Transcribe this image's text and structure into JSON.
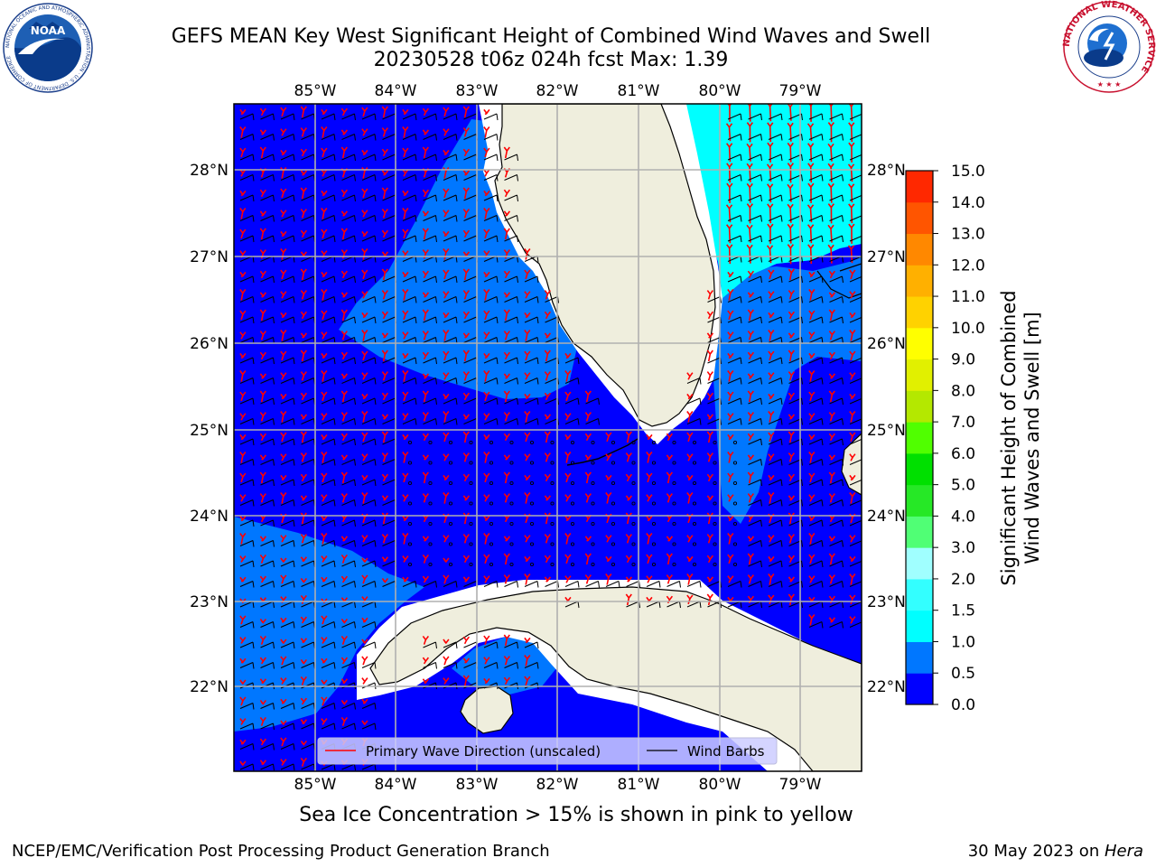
{
  "title": {
    "line1": "GEFS MEAN Key West Significant Height of Combined Wind Waves and Swell",
    "line2": "20230528 t06z 024h fcst   Max: 1.39"
  },
  "logos": {
    "left_text": "NOAA",
    "left_ring": "NATIONAL OCEANIC AND ATMOSPHERIC ADMINISTRATION · U.S. DEPARTMENT OF COMMERCE",
    "right_ring": "NATIONAL WEATHER SERVICE"
  },
  "map": {
    "lon_labels": [
      "85°W",
      "84°W",
      "83°W",
      "82°W",
      "81°W",
      "80°W",
      "79°W"
    ],
    "lat_labels": [
      "28°N",
      "27°N",
      "26°N",
      "25°N",
      "24°N",
      "23°N",
      "22°N"
    ],
    "land_color": "#efeedd",
    "grid_color": "#b0b0b0"
  },
  "legend": {
    "wave_label": "Primary Wave Direction (unscaled)",
    "wind_label": "Wind Barbs",
    "wave_color": "#ff0000",
    "wind_color": "#000000"
  },
  "colorbar": {
    "label_line1": "Significant Height of Combined",
    "label_line2": "Wind Waves and Swell [m]",
    "ticks": [
      "0.0",
      "0.5",
      "1.0",
      "1.5",
      "2.0",
      "3.0",
      "4.0",
      "5.0",
      "6.0",
      "7.0",
      "8.0",
      "9.0",
      "10.0",
      "11.0",
      "12.0",
      "13.0",
      "14.0",
      "15.0"
    ],
    "colors": [
      "#0000ff",
      "#0077ff",
      "#00ffff",
      "#33ffff",
      "#a0ffff",
      "#50ff75",
      "#26e826",
      "#00e000",
      "#50ff00",
      "#b4e800",
      "#e1f000",
      "#ffff00",
      "#ffd200",
      "#ffb000",
      "#ff8800",
      "#ff5500",
      "#ff2800",
      "#ff0000"
    ]
  },
  "footer": {
    "note": "Sea Ice Concentration > 15% is shown in pink to yellow",
    "left": "NCEP/EMC/Verification Post Processing Product Generation Branch",
    "right_date": "30 May 2023 on ",
    "right_host": "Hera"
  }
}
